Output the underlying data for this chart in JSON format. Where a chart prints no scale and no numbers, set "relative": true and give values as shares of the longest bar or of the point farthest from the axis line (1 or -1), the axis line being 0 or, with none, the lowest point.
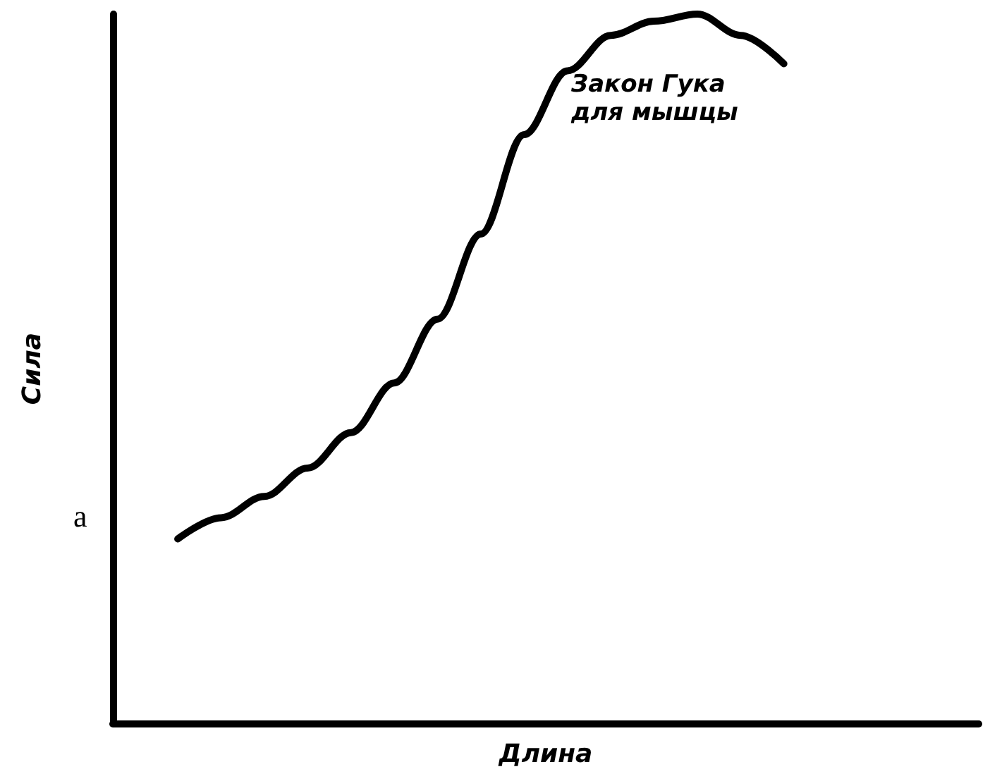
{
  "chart_data": {
    "type": "line",
    "relative": true,
    "xlabel": "Длина",
    "ylabel": "Сила",
    "annotations": [
      "Закон Гука\nдля мышцы",
      "а"
    ],
    "categories": [
      null,
      null,
      null,
      null,
      null,
      null,
      null,
      null,
      null,
      null,
      null,
      null,
      null,
      null,
      null,
      null,
      null,
      null,
      null,
      null
    ],
    "series": [
      {
        "color": "#000000",
        "values": [
          null,
          0.26,
          0.29,
          0.32,
          0.36,
          0.41,
          0.48,
          0.57,
          0.69,
          0.83,
          0.92,
          0.97,
          0.99,
          1.0,
          0.97,
          0.93,
          null,
          null,
          null,
          null
        ]
      }
    ],
    "marker": "none",
    "line_style": "solid"
  }
}
